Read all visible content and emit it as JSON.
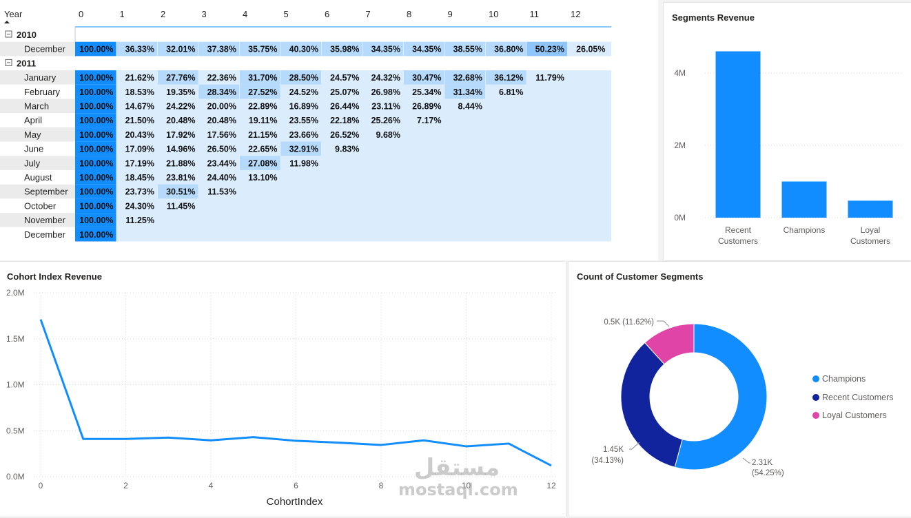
{
  "matrix": {
    "header_label": "Year",
    "columns": [
      "0",
      "1",
      "2",
      "3",
      "4",
      "5",
      "6",
      "7",
      "8",
      "9",
      "10",
      "11",
      "12"
    ],
    "groups": [
      {
        "year": "2010",
        "rows": [
          {
            "label": "December",
            "values": [
              "100.00%",
              "36.33%",
              "32.01%",
              "37.38%",
              "35.75%",
              "40.30%",
              "35.98%",
              "34.35%",
              "34.35%",
              "38.55%",
              "36.80%",
              "50.23%",
              "26.05%"
            ]
          }
        ]
      },
      {
        "year": "2011",
        "rows": [
          {
            "label": "January",
            "values": [
              "100.00%",
              "21.62%",
              "27.76%",
              "22.36%",
              "31.70%",
              "28.50%",
              "24.57%",
              "24.32%",
              "30.47%",
              "32.68%",
              "36.12%",
              "11.79%"
            ]
          },
          {
            "label": "February",
            "values": [
              "100.00%",
              "18.53%",
              "19.35%",
              "28.34%",
              "27.52%",
              "24.52%",
              "25.07%",
              "26.98%",
              "25.34%",
              "31.34%",
              "6.81%"
            ]
          },
          {
            "label": "March",
            "values": [
              "100.00%",
              "14.67%",
              "24.22%",
              "20.00%",
              "22.89%",
              "16.89%",
              "26.44%",
              "23.11%",
              "26.89%",
              "8.44%"
            ]
          },
          {
            "label": "April",
            "values": [
              "100.00%",
              "21.50%",
              "20.48%",
              "20.48%",
              "19.11%",
              "23.55%",
              "22.18%",
              "25.26%",
              "7.17%"
            ]
          },
          {
            "label": "May",
            "values": [
              "100.00%",
              "20.43%",
              "17.92%",
              "17.56%",
              "21.15%",
              "23.66%",
              "26.52%",
              "9.68%"
            ]
          },
          {
            "label": "June",
            "values": [
              "100.00%",
              "17.09%",
              "14.96%",
              "26.50%",
              "22.65%",
              "32.91%",
              "9.83%"
            ]
          },
          {
            "label": "July",
            "values": [
              "100.00%",
              "17.19%",
              "21.88%",
              "23.44%",
              "27.08%",
              "11.98%"
            ]
          },
          {
            "label": "August",
            "values": [
              "100.00%",
              "18.45%",
              "23.81%",
              "24.40%",
              "13.10%"
            ]
          },
          {
            "label": "September",
            "values": [
              "100.00%",
              "23.73%",
              "30.51%",
              "11.53%"
            ]
          },
          {
            "label": "October",
            "values": [
              "100.00%",
              "24.30%",
              "11.45%"
            ]
          },
          {
            "label": "November",
            "values": [
              "100.00%",
              "11.25%"
            ]
          },
          {
            "label": "December",
            "values": [
              "100.00%"
            ]
          }
        ]
      }
    ],
    "colors": {
      "full": "#118dff",
      "light": "#dbecfd",
      "mid": "#b6dafc",
      "strong": "#8ec6fb"
    }
  },
  "segments_revenue": {
    "title": "Segments Revenue",
    "chart_data": {
      "type": "bar",
      "categories": [
        "Recent Customers",
        "Champions",
        "Loyal Customers"
      ],
      "category_lines": [
        [
          "Recent",
          "Customers"
        ],
        [
          "Champions"
        ],
        [
          "Loyal",
          "Customers"
        ]
      ],
      "values": [
        4600000,
        1000000,
        470000
      ],
      "yticks": [
        "0M",
        "2M",
        "4M"
      ],
      "ylim": [
        0,
        4800000
      ],
      "grid": true,
      "color": "#118dff"
    }
  },
  "cohort_revenue": {
    "title": "Cohort Index Revenue",
    "chart_data": {
      "type": "line",
      "x": [
        0,
        1,
        2,
        3,
        4,
        5,
        6,
        7,
        8,
        9,
        10,
        11,
        12
      ],
      "values": [
        1710000,
        410000,
        410000,
        425000,
        395000,
        430000,
        390000,
        370000,
        345000,
        395000,
        330000,
        360000,
        120000
      ],
      "xticks": [
        "0",
        "2",
        "4",
        "6",
        "8",
        "10",
        "12"
      ],
      "yticks": [
        "0.0M",
        "0.5M",
        "1.0M",
        "1.5M",
        "2.0M"
      ],
      "xlabel": "CohortIndex",
      "ylabel": "",
      "ylim": [
        0,
        2000000
      ],
      "xlim": [
        0,
        12
      ],
      "grid": true,
      "color": "#118dff"
    }
  },
  "customer_segments": {
    "title": "Count of Customer Segments",
    "chart_data": {
      "type": "pie",
      "slices": [
        {
          "name": "Champions",
          "value": 2310,
          "label": "2.31K",
          "pct": "(54.25%)",
          "color": "#118dff"
        },
        {
          "name": "Recent Customers",
          "value": 1450,
          "label": "1.45K",
          "pct": "(34.13%)",
          "color": "#12239e"
        },
        {
          "name": "Loyal Customers",
          "value": 500,
          "label": "0.5K",
          "pct": "(11.62%)",
          "color": "#e044a7"
        }
      ],
      "small_label": "0.5K (11.62%)",
      "legend_position": "right"
    }
  },
  "watermark": {
    "arabic": "مستقل",
    "latin": "mostaql.com"
  }
}
